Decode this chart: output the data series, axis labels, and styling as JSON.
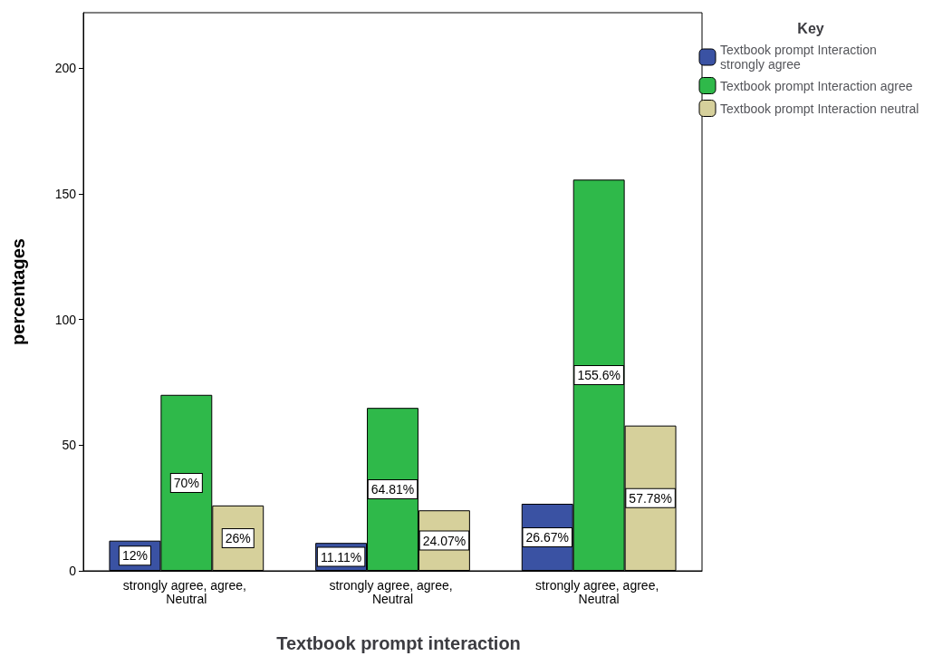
{
  "chart_data": {
    "type": "bar",
    "xlabel": "Textbook prompt interaction",
    "ylabel": "percentages",
    "legend_title": "Key",
    "legend": "top right",
    "categories": [
      "strongly agree, agree, Neutral",
      "strongly agree, agree, Neutral",
      "strongly agree, agree, Neutral"
    ],
    "series": [
      {
        "name": "Textbook prompt Interaction strongly agree",
        "color": "#3a52a3",
        "values": [
          12,
          11.11,
          26.67
        ],
        "value_labels": [
          "12%",
          "11.11%",
          "26.67%"
        ]
      },
      {
        "name": "Textbook prompt Interaction agree",
        "color": "#2fb94a",
        "values": [
          70,
          64.81,
          155.6
        ],
        "value_labels": [
          "70%",
          "64.81%",
          "155.6%"
        ]
      },
      {
        "name": "Textbook prompt Interaction neutral",
        "color": "#d6d09b",
        "values": [
          26,
          24.07,
          57.78
        ],
        "value_labels": [
          "26%",
          "24.07%",
          "57.78%"
        ]
      }
    ],
    "ylim": [
      0,
      222
    ],
    "yticks": [
      0,
      50,
      100,
      150,
      200
    ],
    "grid": false
  }
}
